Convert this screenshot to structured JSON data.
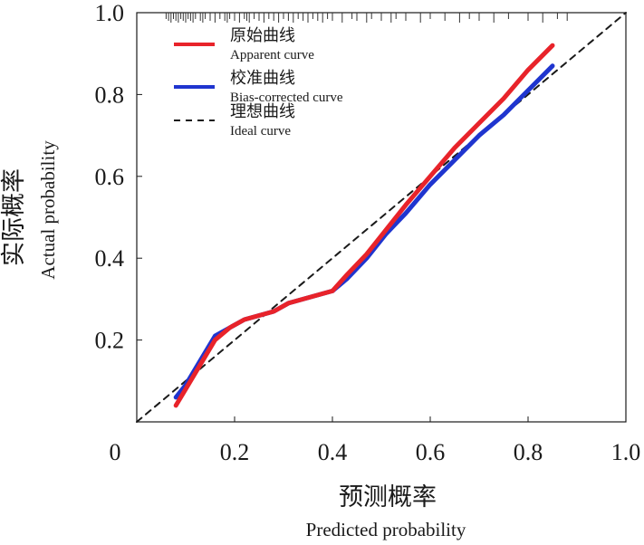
{
  "chart_data": {
    "type": "line",
    "xlabel_cn": "预测概率",
    "xlabel_en": "Predicted probability",
    "ylabel_cn": "实际概率",
    "ylabel_en": "Actual probability",
    "xlim": [
      0,
      1.0
    ],
    "ylim": [
      0,
      1.0
    ],
    "x_ticks": [
      {
        "value": 0,
        "label": "0"
      },
      {
        "value": 0.2,
        "label": "0.2"
      },
      {
        "value": 0.4,
        "label": "0.4"
      },
      {
        "value": 0.6,
        "label": "0.6"
      },
      {
        "value": 0.8,
        "label": "0.8"
      },
      {
        "value": 1.0,
        "label": "1.0"
      }
    ],
    "y_ticks": [
      {
        "value": 0.2,
        "label": "0.2"
      },
      {
        "value": 0.4,
        "label": "0.4"
      },
      {
        "value": 0.6,
        "label": "0.6"
      },
      {
        "value": 0.8,
        "label": "0.8"
      },
      {
        "value": 1.0,
        "label": "1.0"
      }
    ],
    "grid": false,
    "legend_position": "top-left",
    "series": [
      {
        "name": "原始曲线",
        "name_en": "Apparent curve",
        "color": "#e8232a",
        "style": "solid",
        "x": [
          0.08,
          0.1,
          0.13,
          0.16,
          0.19,
          0.22,
          0.25,
          0.28,
          0.31,
          0.34,
          0.37,
          0.4,
          0.43,
          0.47,
          0.51,
          0.55,
          0.6,
          0.65,
          0.7,
          0.75,
          0.8,
          0.85
        ],
        "y": [
          0.04,
          0.08,
          0.14,
          0.2,
          0.23,
          0.25,
          0.26,
          0.27,
          0.29,
          0.3,
          0.31,
          0.32,
          0.36,
          0.41,
          0.47,
          0.53,
          0.6,
          0.67,
          0.73,
          0.79,
          0.86,
          0.92
        ]
      },
      {
        "name": "校准曲线",
        "name_en": "Bias-corrected curve",
        "color": "#1f35cf",
        "style": "solid",
        "x": [
          0.08,
          0.1,
          0.13,
          0.16,
          0.19,
          0.22,
          0.25,
          0.28,
          0.31,
          0.34,
          0.37,
          0.4,
          0.43,
          0.47,
          0.51,
          0.55,
          0.6,
          0.65,
          0.7,
          0.75,
          0.8,
          0.85
        ],
        "y": [
          0.06,
          0.09,
          0.15,
          0.21,
          0.23,
          0.25,
          0.26,
          0.27,
          0.29,
          0.3,
          0.31,
          0.32,
          0.35,
          0.4,
          0.46,
          0.51,
          0.58,
          0.64,
          0.7,
          0.75,
          0.81,
          0.87
        ]
      },
      {
        "name": "理想曲线",
        "name_en": "Ideal curve",
        "color": "#1a1a1a",
        "style": "dashed",
        "x": [
          0,
          1.0
        ],
        "y": [
          0,
          1.0
        ]
      }
    ],
    "rug_x": [
      0.06,
      0.065,
      0.07,
      0.075,
      0.08,
      0.085,
      0.09,
      0.095,
      0.1,
      0.105,
      0.11,
      0.115,
      0.12,
      0.13,
      0.135,
      0.14,
      0.15,
      0.16,
      0.17,
      0.18,
      0.185,
      0.19,
      0.2,
      0.21,
      0.22,
      0.225,
      0.23,
      0.24,
      0.25,
      0.26,
      0.27,
      0.28,
      0.29,
      0.3,
      0.31,
      0.32,
      0.33,
      0.34,
      0.35,
      0.36,
      0.37,
      0.38,
      0.39,
      0.4,
      0.42,
      0.44,
      0.45,
      0.47,
      0.48,
      0.5,
      0.52,
      0.53,
      0.55,
      0.58,
      0.6,
      0.63,
      0.66,
      0.68,
      0.7,
      0.73,
      0.76,
      0.8,
      0.83,
      0.86,
      0.88
    ]
  }
}
